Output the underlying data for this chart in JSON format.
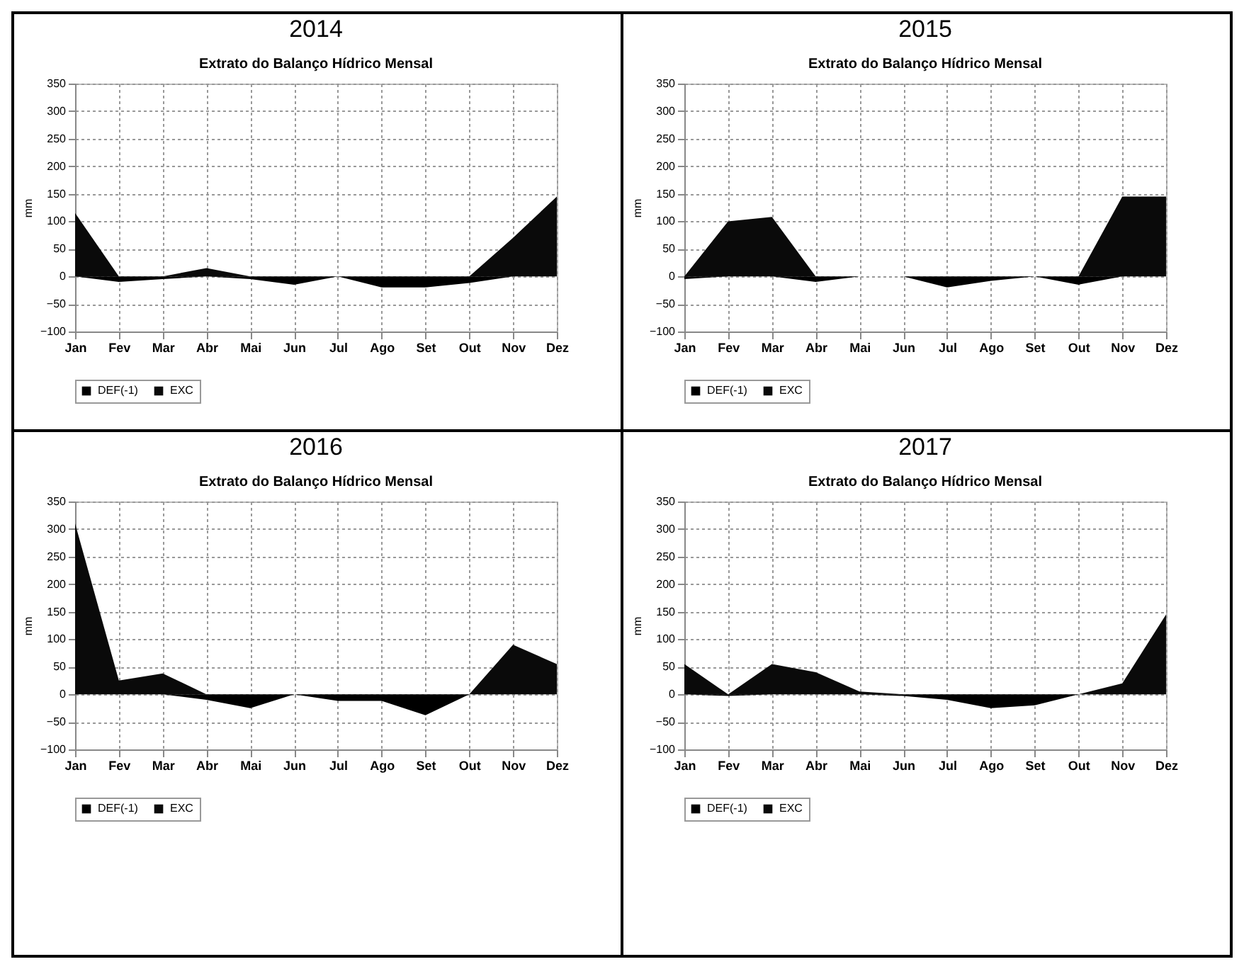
{
  "chart_data": [
    {
      "type": "area",
      "title": "2014",
      "subtitle": "Extrato do Balanço Hídrico Mensal",
      "ylabel": "mm",
      "categories": [
        "Jan",
        "Fev",
        "Mar",
        "Abr",
        "Mai",
        "Jun",
        "Jul",
        "Ago",
        "Set",
        "Out",
        "Nov",
        "Dez"
      ],
      "ylim": [
        -100,
        350
      ],
      "yticks": [
        -100,
        -50,
        0,
        50,
        100,
        150,
        200,
        250,
        300,
        350
      ],
      "grid": true,
      "legend": "bottom",
      "series": [
        {
          "name": "DEF(-1)",
          "color": "#000000",
          "values": [
            0,
            -10,
            -5,
            0,
            -5,
            -15,
            0,
            -20,
            -20,
            -12,
            0,
            0
          ]
        },
        {
          "name": "EXC",
          "color": "#0a0a0a",
          "values": [
            115,
            0,
            0,
            15,
            0,
            0,
            0,
            0,
            0,
            0,
            70,
            145
          ]
        }
      ]
    },
    {
      "type": "area",
      "title": "2015",
      "subtitle": "Extrato do Balanço Hídrico Mensal",
      "ylabel": "mm",
      "categories": [
        "Jan",
        "Fev",
        "Mar",
        "Abr",
        "Mai",
        "Jun",
        "Jul",
        "Ago",
        "Set",
        "Out",
        "Nov",
        "Dez"
      ],
      "ylim": [
        -100,
        350
      ],
      "yticks": [
        -100,
        -50,
        0,
        50,
        100,
        150,
        200,
        250,
        300,
        350
      ],
      "grid": true,
      "legend": "bottom",
      "series": [
        {
          "name": "DEF(-1)",
          "color": "#000000",
          "values": [
            -5,
            0,
            0,
            -10,
            0,
            0,
            -20,
            -8,
            0,
            -15,
            0,
            0
          ]
        },
        {
          "name": "EXC",
          "color": "#0a0a0a",
          "values": [
            0,
            100,
            108,
            0,
            0,
            0,
            0,
            0,
            0,
            0,
            145,
            145
          ]
        }
      ]
    },
    {
      "type": "area",
      "title": "2016",
      "subtitle": "Extrato do Balanço Hídrico Mensal",
      "ylabel": "mm",
      "categories": [
        "Jan",
        "Fev",
        "Mar",
        "Abr",
        "Mai",
        "Jun",
        "Jul",
        "Ago",
        "Set",
        "Out",
        "Nov",
        "Dez"
      ],
      "ylim": [
        -100,
        350
      ],
      "yticks": [
        -100,
        -50,
        0,
        50,
        100,
        150,
        200,
        250,
        300,
        350
      ],
      "grid": true,
      "legend": "bottom",
      "series": [
        {
          "name": "DEF(-1)",
          "color": "#000000",
          "values": [
            0,
            0,
            0,
            -10,
            -25,
            0,
            -12,
            -12,
            -38,
            0,
            0,
            0
          ]
        },
        {
          "name": "EXC",
          "color": "#0a0a0a",
          "values": [
            310,
            25,
            38,
            0,
            0,
            0,
            0,
            0,
            0,
            0,
            90,
            55
          ]
        }
      ]
    },
    {
      "type": "area",
      "title": "2017",
      "subtitle": "Extrato do Balanço Hídrico Mensal",
      "ylabel": "mm",
      "categories": [
        "Jan",
        "Fev",
        "Mar",
        "Abr",
        "Mai",
        "Jun",
        "Jul",
        "Ago",
        "Set",
        "Out",
        "Nov",
        "Dez"
      ],
      "ylim": [
        -100,
        350
      ],
      "yticks": [
        -100,
        -50,
        0,
        50,
        100,
        150,
        200,
        250,
        300,
        350
      ],
      "grid": true,
      "legend": "bottom",
      "series": [
        {
          "name": "DEF(-1)",
          "color": "#000000",
          "values": [
            0,
            -3,
            0,
            0,
            0,
            -3,
            -10,
            -25,
            -20,
            0,
            0,
            0
          ]
        },
        {
          "name": "EXC",
          "color": "#0a0a0a",
          "values": [
            55,
            0,
            55,
            40,
            5,
            0,
            0,
            0,
            0,
            0,
            20,
            145
          ]
        }
      ]
    }
  ]
}
